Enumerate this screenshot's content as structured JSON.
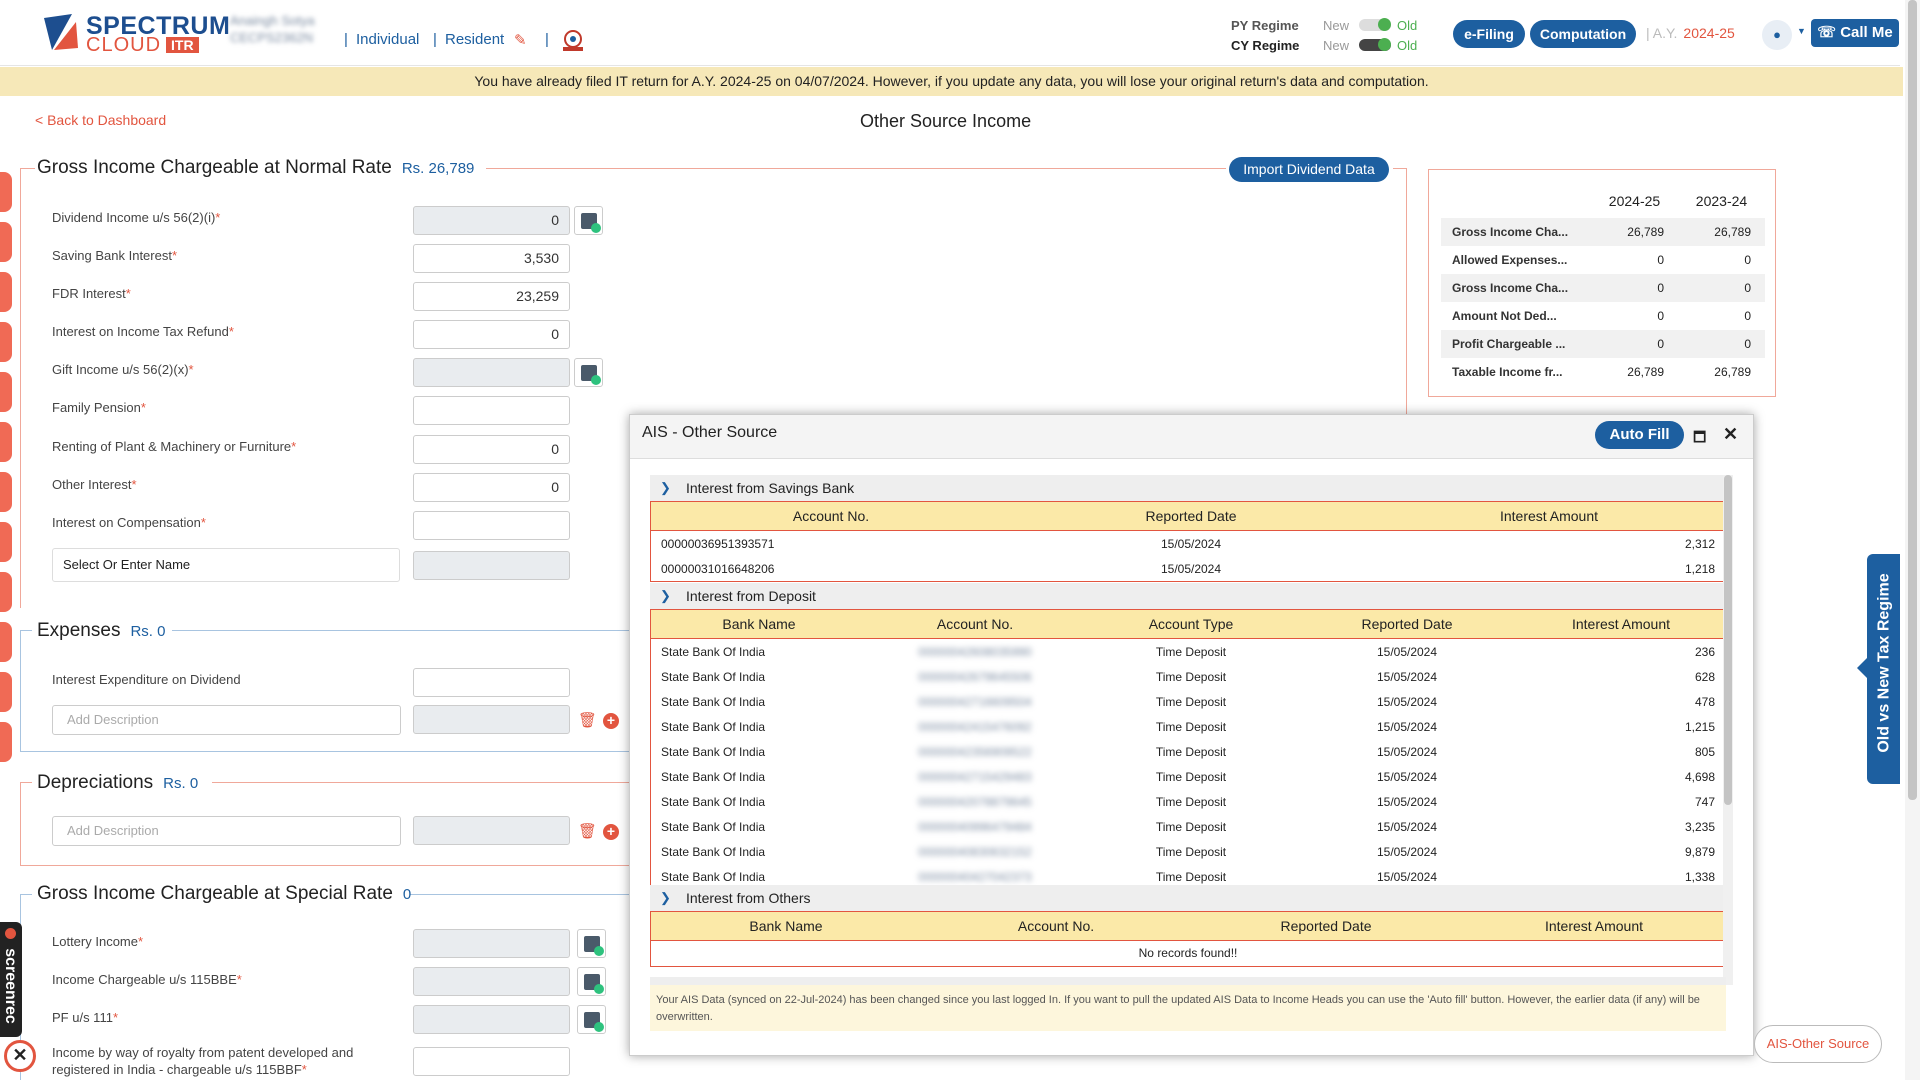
{
  "header": {
    "logo_line1": "SPECTRUM",
    "logo_line2": "CLOUD",
    "logo_badge": "ITR",
    "user_name": "Anaingh Sotya",
    "user_pan": "CECPS2362N",
    "status": "Individual",
    "residency": "Resident",
    "py_regime_label": "PY Regime",
    "cy_regime_label": "CY Regime",
    "regime_new": "New",
    "regime_old": "Old",
    "efiling_label": "e-Filing",
    "computation_label": "Computation",
    "ay_label": "A.Y.",
    "ay_value": "2024-25",
    "call_me_label": "Call Me"
  },
  "notice": "You have already filed IT return for A.Y. 2024-25 on 04/07/2024. However, if you update any data, you will lose your original return's data and computation.",
  "back_link": "< Back to Dashboard",
  "page_title": "Other Source Income",
  "normal_rate": {
    "title": "Gross Income Chargeable at Normal Rate",
    "amount": "Rs.  26,789",
    "import_button": "Import Dividend Data",
    "fields": [
      {
        "label": "Dividend Income u/s 56(2)(i)",
        "value": "0"
      },
      {
        "label": "Saving Bank Interest",
        "value": "3,530"
      },
      {
        "label": "FDR Interest",
        "value": "23,259"
      },
      {
        "label": "Interest on Income Tax Refund",
        "value": "0"
      },
      {
        "label": "Gift Income u/s 56(2)(x)",
        "value": ""
      },
      {
        "label": "Family Pension",
        "value": ""
      },
      {
        "label": "Renting of Plant & Machinery or Furniture",
        "value": "0"
      },
      {
        "label": "Other Interest",
        "value": "0"
      },
      {
        "label": "Interest on Compensation",
        "value": ""
      }
    ],
    "select_name": "Select Or Enter Name"
  },
  "expenses": {
    "title": "Expenses",
    "amount": "Rs.  0",
    "field_label": "Interest Expenditure on Dividend",
    "add_description": "Add Description"
  },
  "depreciations": {
    "title": "Depreciations",
    "amount": "Rs.  0",
    "add_description": "Add Description"
  },
  "special_rate": {
    "title": "Gross Income Chargeable at Special Rate",
    "amount": "0",
    "fields": [
      {
        "label": "Lottery Income"
      },
      {
        "label": "Income Chargeable u/s 115BBE"
      },
      {
        "label": "PF u/s 111"
      },
      {
        "label_line1": "Income by way of royalty from patent developed and",
        "label_line2": "registered in India - chargeable u/s 115BBF"
      }
    ]
  },
  "summary": {
    "col1": "2024-25",
    "col2": "2023-24",
    "rows": [
      {
        "label": "Gross Income Cha...",
        "v1": "26,789",
        "v2": "26,789"
      },
      {
        "label": "Allowed Expenses...",
        "v1": "0",
        "v2": "0"
      },
      {
        "label": "Gross Income Cha...",
        "v1": "0",
        "v2": "0"
      },
      {
        "label": "Amount Not Ded...",
        "v1": "0",
        "v2": "0"
      },
      {
        "label": "Profit Chargeable ...",
        "v1": "0",
        "v2": "0"
      },
      {
        "label": "Taxable Income fr...",
        "v1": "26,789",
        "v2": "26,789"
      }
    ]
  },
  "modal": {
    "title": "AIS - Other Source",
    "auto_fill": "Auto Fill",
    "savings": {
      "title": "Interest from Savings Bank",
      "headers": [
        "Account No.",
        "Reported Date",
        "Interest Amount"
      ],
      "rows": [
        {
          "account": "00000036951393571",
          "date": "15/05/2024",
          "amount": "2,312"
        },
        {
          "account": "00000031016648206",
          "date": "15/05/2024",
          "amount": "1,218"
        }
      ]
    },
    "deposit": {
      "title": "Interest from Deposit",
      "headers": [
        "Bank Name",
        "Account No.",
        "Account Type",
        "Reported Date",
        "Interest Amount"
      ],
      "rows": [
        {
          "bank": "State Bank Of India",
          "account": "00000042608035990",
          "type": "Time Deposit",
          "date": "15/05/2024",
          "amount": "236"
        },
        {
          "bank": "State Bank Of India",
          "account": "00000042679645506",
          "type": "Time Deposit",
          "date": "15/05/2024",
          "amount": "628"
        },
        {
          "bank": "State Bank Of India",
          "account": "00000042716609504",
          "type": "Time Deposit",
          "date": "15/05/2024",
          "amount": "478"
        },
        {
          "bank": "State Bank Of India",
          "account": "00000042415476092",
          "type": "Time Deposit",
          "date": "15/05/2024",
          "amount": "1,215"
        },
        {
          "bank": "State Bank Of India",
          "account": "00000042356909522",
          "type": "Time Deposit",
          "date": "15/05/2024",
          "amount": "805"
        },
        {
          "bank": "State Bank Of India",
          "account": "00000042715429483",
          "type": "Time Deposit",
          "date": "15/05/2024",
          "amount": "4,698"
        },
        {
          "bank": "State Bank Of India",
          "account": "00000042078879645",
          "type": "Time Deposit",
          "date": "15/05/2024",
          "amount": "747"
        },
        {
          "bank": "State Bank Of India",
          "account": "00000040996479484",
          "type": "Time Deposit",
          "date": "15/05/2024",
          "amount": "3,235"
        },
        {
          "bank": "State Bank Of India",
          "account": "00000040830632152",
          "type": "Time Deposit",
          "date": "15/05/2024",
          "amount": "9,879"
        },
        {
          "bank": "State Bank Of India",
          "account": "00000040427042373",
          "type": "Time Deposit",
          "date": "15/05/2024",
          "amount": "1,338"
        }
      ]
    },
    "others": {
      "title": "Interest from Others",
      "headers": [
        "Bank Name",
        "Account No.",
        "Reported Date",
        "Interest Amount"
      ],
      "empty": "No records found!!"
    },
    "note": "Your AIS Data (synced on 22-Jul-2024) has been changed since you last logged In. If you want to pull the updated AIS Data to Income Heads you can use the 'Auto fill' button. However, the earlier data (if any) will be overwritten."
  },
  "old_vs_new": "Old vs New Tax Regime",
  "ais_tab": "AIS-Other Source",
  "screenrec": "screenrec"
}
